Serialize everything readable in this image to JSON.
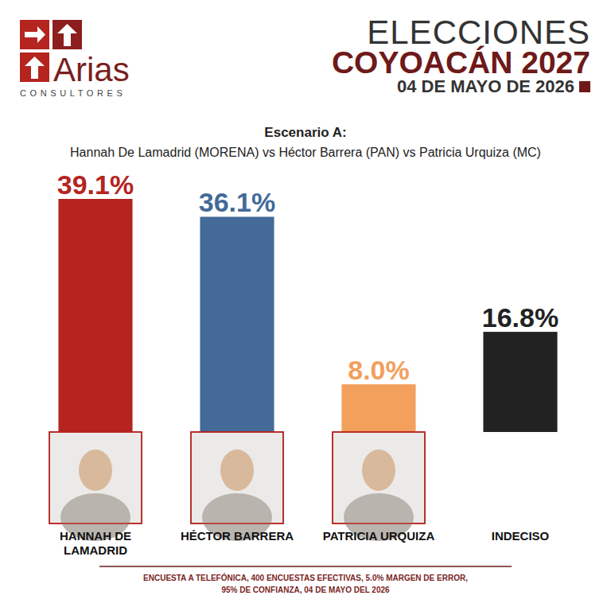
{
  "chart_data": {
    "type": "bar",
    "title": "Escenario A:",
    "subtitle": "Hannah De Lamadrid (MORENA) vs Héctor Barrera (PAN) vs Patricia Urquiza (MC)",
    "categories": [
      "HANNAH DE LAMADRID",
      "HÉCTOR BARRERA",
      "PATRICIA URQUIZA",
      "INDECISO"
    ],
    "values": [
      39.1,
      36.1,
      8.0,
      16.8
    ],
    "value_labels": [
      "39.1%",
      "36.1%",
      "8.0%",
      "16.8%"
    ],
    "colors": [
      "#b5241f",
      "#436a98",
      "#f2a05c",
      "#222222"
    ],
    "data_labels": true,
    "tick_labels": "x",
    "annotations": [
      "Arias",
      "CONSULTORES",
      "ELECCIONES",
      "COYOACÁN 2027",
      "04 DE MAYO DE 2026",
      "ENCUESTA A TELEFÓNICA, 400 ENCUESTAS EFECTIVAS, 5.0% MARGEN DE ERROR,",
      "95% DE CONFIANZA, 04 DE MAYO DEL 2026"
    ]
  }
}
